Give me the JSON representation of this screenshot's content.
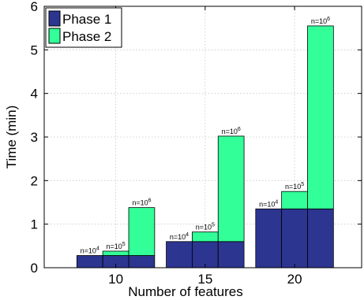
{
  "chart_data": {
    "type": "bar",
    "stacked": true,
    "title": "",
    "xlabel": "Number of features",
    "ylabel": "Time (min)",
    "ylim": [
      0,
      6
    ],
    "yticks": [
      "0",
      "1",
      "2",
      "3",
      "4",
      "5",
      "6"
    ],
    "grid": true,
    "legend_position": "top-left",
    "groups": [
      "10",
      "15",
      "20"
    ],
    "sample_sizes": [
      "4",
      "5",
      "6"
    ],
    "bar_label_prefix": "n=10",
    "series": [
      {
        "name": "Phase 1",
        "color": "#2c3590",
        "values": [
          [
            0.28,
            0.28,
            0.28
          ],
          [
            0.6,
            0.6,
            0.6
          ],
          [
            1.35,
            1.35,
            1.35
          ]
        ]
      },
      {
        "name": "Phase 2",
        "color": "#33ff99",
        "values": [
          [
            0.0,
            0.1,
            1.1
          ],
          [
            0.0,
            0.22,
            2.42
          ],
          [
            0.0,
            0.4,
            4.2
          ]
        ]
      }
    ]
  }
}
